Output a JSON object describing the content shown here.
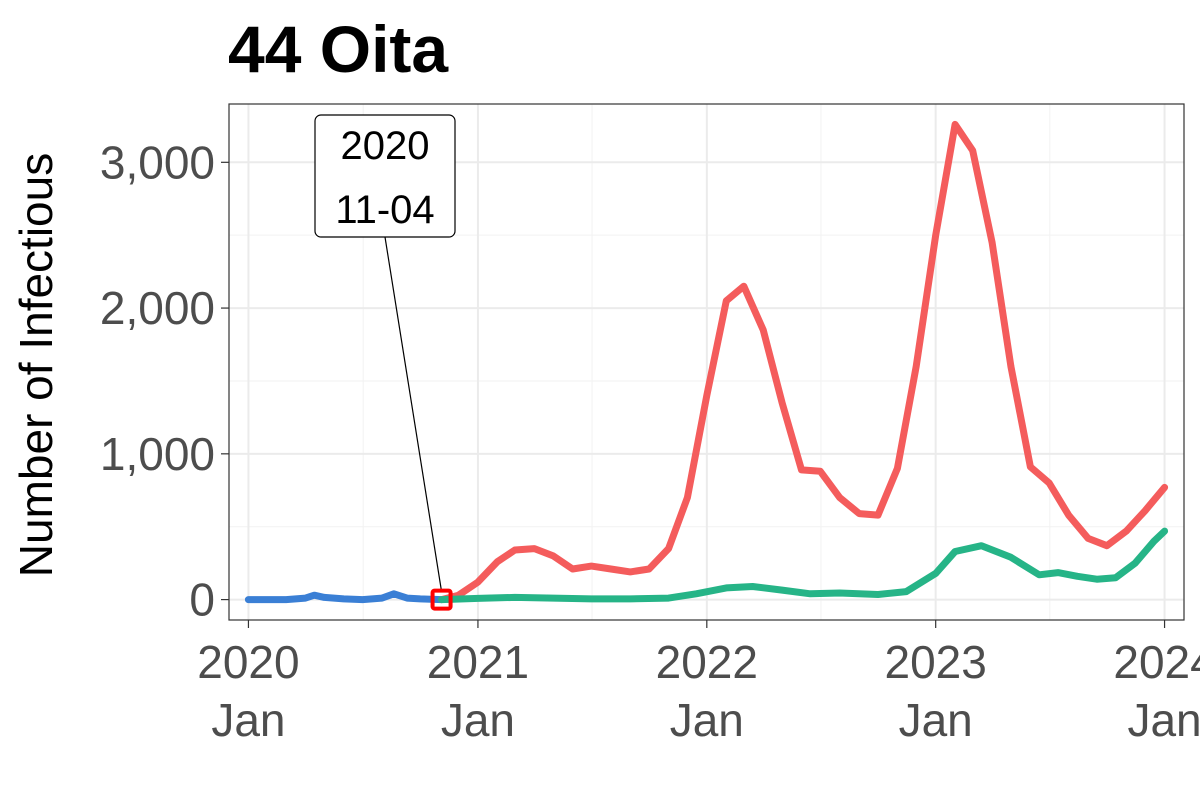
{
  "chart_data": {
    "type": "line",
    "title": "44 Oita",
    "ylabel": "Number of Infectious",
    "xlabel": "",
    "ylim": [
      -140,
      3400
    ],
    "xlim": [
      "2019-12-01",
      "2024-02-01"
    ],
    "grid": true,
    "legend": "none",
    "y_ticks": [
      {
        "value": 0,
        "label": "0"
      },
      {
        "value": 1000,
        "label": "1,000"
      },
      {
        "value": 2000,
        "label": "2,000"
      },
      {
        "value": 3000,
        "label": "3,000"
      }
    ],
    "x_ticks": [
      {
        "date": "2020-01-01",
        "year": "2020",
        "month": "Jan"
      },
      {
        "date": "2021-01-01",
        "year": "2021",
        "month": "Jan"
      },
      {
        "date": "2022-01-01",
        "year": "2022",
        "month": "Jan"
      },
      {
        "date": "2023-01-01",
        "year": "2023",
        "month": "Jan"
      },
      {
        "date": "2024-01-01",
        "year": "2024",
        "month": "Jan"
      }
    ],
    "annotation": {
      "date": "2020-11-04",
      "value": 0,
      "lines": [
        "2020",
        "11-04"
      ],
      "marker_color": "#ff0000"
    },
    "series": [
      {
        "color": "#3a7fd5",
        "points": [
          [
            "2020-01-01",
            0
          ],
          [
            "2020-02-01",
            0
          ],
          [
            "2020-03-01",
            0
          ],
          [
            "2020-04-01",
            10
          ],
          [
            "2020-04-15",
            30
          ],
          [
            "2020-05-01",
            15
          ],
          [
            "2020-06-01",
            5
          ],
          [
            "2020-07-01",
            0
          ],
          [
            "2020-08-01",
            10
          ],
          [
            "2020-08-20",
            40
          ],
          [
            "2020-09-10",
            10
          ],
          [
            "2020-10-01",
            5
          ],
          [
            "2020-11-04",
            0
          ]
        ]
      },
      {
        "color": "#f45c5c",
        "points": [
          [
            "2020-11-04",
            0
          ],
          [
            "2020-12-01",
            30
          ],
          [
            "2021-01-01",
            120
          ],
          [
            "2021-02-01",
            260
          ],
          [
            "2021-03-01",
            340
          ],
          [
            "2021-04-01",
            350
          ],
          [
            "2021-05-01",
            300
          ],
          [
            "2021-06-01",
            210
          ],
          [
            "2021-07-01",
            230
          ],
          [
            "2021-08-01",
            210
          ],
          [
            "2021-09-01",
            190
          ],
          [
            "2021-10-01",
            210
          ],
          [
            "2021-11-01",
            350
          ],
          [
            "2021-12-01",
            700
          ],
          [
            "2022-01-01",
            1400
          ],
          [
            "2022-02-01",
            2050
          ],
          [
            "2022-03-01",
            2150
          ],
          [
            "2022-04-01",
            1850
          ],
          [
            "2022-05-01",
            1350
          ],
          [
            "2022-06-01",
            890
          ],
          [
            "2022-07-01",
            880
          ],
          [
            "2022-08-01",
            700
          ],
          [
            "2022-09-01",
            590
          ],
          [
            "2022-10-01",
            580
          ],
          [
            "2022-11-01",
            900
          ],
          [
            "2022-12-01",
            1600
          ],
          [
            "2023-01-01",
            2500
          ],
          [
            "2023-02-01",
            3260
          ],
          [
            "2023-03-01",
            3080
          ],
          [
            "2023-04-01",
            2450
          ],
          [
            "2023-05-01",
            1600
          ],
          [
            "2023-06-01",
            910
          ],
          [
            "2023-07-01",
            800
          ],
          [
            "2023-08-01",
            580
          ],
          [
            "2023-09-01",
            420
          ],
          [
            "2023-10-01",
            370
          ],
          [
            "2023-11-01",
            470
          ],
          [
            "2023-12-01",
            610
          ],
          [
            "2024-01-01",
            770
          ]
        ]
      },
      {
        "color": "#26b487",
        "points": [
          [
            "2020-11-04",
            0
          ],
          [
            "2021-01-01",
            8
          ],
          [
            "2021-03-01",
            15
          ],
          [
            "2021-05-01",
            10
          ],
          [
            "2021-07-01",
            5
          ],
          [
            "2021-09-01",
            5
          ],
          [
            "2021-11-01",
            10
          ],
          [
            "2021-12-15",
            40
          ],
          [
            "2022-02-01",
            80
          ],
          [
            "2022-03-15",
            90
          ],
          [
            "2022-05-01",
            65
          ],
          [
            "2022-06-15",
            40
          ],
          [
            "2022-08-01",
            45
          ],
          [
            "2022-10-01",
            35
          ],
          [
            "2022-11-15",
            55
          ],
          [
            "2023-01-01",
            180
          ],
          [
            "2023-02-01",
            330
          ],
          [
            "2023-03-15",
            370
          ],
          [
            "2023-05-01",
            290
          ],
          [
            "2023-06-15",
            170
          ],
          [
            "2023-07-15",
            185
          ],
          [
            "2023-08-15",
            160
          ],
          [
            "2023-09-15",
            140
          ],
          [
            "2023-10-15",
            150
          ],
          [
            "2023-11-15",
            250
          ],
          [
            "2023-12-15",
            400
          ],
          [
            "2024-01-01",
            470
          ]
        ]
      }
    ]
  }
}
